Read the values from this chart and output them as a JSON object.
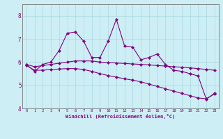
{
  "x": [
    0,
    1,
    2,
    3,
    4,
    5,
    6,
    7,
    8,
    9,
    10,
    11,
    12,
    13,
    14,
    15,
    16,
    17,
    18,
    19,
    20,
    21,
    22,
    23
  ],
  "line_main": [
    5.9,
    5.6,
    5.9,
    6.0,
    6.5,
    7.25,
    7.3,
    6.9,
    6.2,
    6.2,
    6.9,
    7.85,
    6.7,
    6.65,
    6.1,
    6.2,
    6.35,
    5.9,
    5.65,
    5.6,
    5.5,
    5.4,
    4.4,
    4.65
  ],
  "line_upper": [
    5.9,
    5.8,
    5.85,
    5.9,
    5.95,
    6.0,
    6.05,
    6.05,
    6.05,
    6.0,
    5.98,
    5.96,
    5.94,
    5.92,
    5.9,
    5.88,
    5.85,
    5.83,
    5.8,
    5.78,
    5.75,
    5.72,
    5.68,
    5.65
  ],
  "line_lower": [
    5.85,
    5.65,
    5.65,
    5.68,
    5.7,
    5.72,
    5.72,
    5.68,
    5.6,
    5.5,
    5.42,
    5.35,
    5.28,
    5.22,
    5.15,
    5.05,
    4.95,
    4.85,
    4.75,
    4.65,
    4.55,
    4.45,
    4.42,
    4.62
  ],
  "color": "#800080",
  "ylim": [
    4.0,
    8.5
  ],
  "yticks": [
    4,
    5,
    6,
    7,
    8
  ],
  "xlim": [
    -0.5,
    23.5
  ],
  "xlabel": "Windchill (Refroidissement éolien,°C)",
  "bg_color": "#cdeef5",
  "grid_color": "#aad8e0",
  "spine_color": "#777777"
}
